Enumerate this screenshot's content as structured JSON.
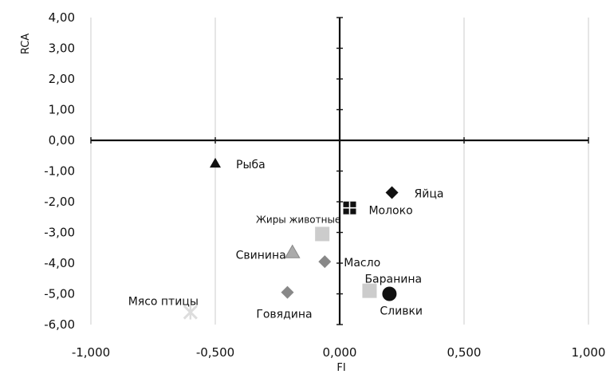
{
  "chart_data": {
    "type": "scatter",
    "title": "",
    "xlabel": "FI",
    "ylabel": "RCA",
    "xlim": [
      -1.0,
      1.0
    ],
    "ylim": [
      -6.0,
      4.0
    ],
    "grid": "vertical",
    "x_ticks": [
      -1.0,
      -0.5,
      0.0,
      0.5,
      1.0
    ],
    "x_tick_labels": [
      "-1,000",
      "-0,500",
      "0,000",
      "0,500",
      "1,000"
    ],
    "y_ticks": [
      4,
      3,
      2,
      1,
      0,
      -1,
      -2,
      -3,
      -4,
      -5,
      -6
    ],
    "y_tick_labels": [
      "4,00",
      "3,00",
      "2,00",
      "1,00",
      "0,00",
      "-1,00",
      "-2,00",
      "-3,00",
      "-4,00",
      "-5,00",
      "-6,00"
    ],
    "points": [
      {
        "label": "Рыба",
        "x": -0.5,
        "y": -0.75,
        "marker": "triangle",
        "color": "#111111"
      },
      {
        "label": "Яйца",
        "x": 0.21,
        "y": -1.7,
        "marker": "diamond",
        "color": "#111111"
      },
      {
        "label": "Молоко",
        "x": 0.04,
        "y": -2.2,
        "marker": "cross-square",
        "color": "#111111"
      },
      {
        "label": "Жиры животные",
        "x": -0.07,
        "y": -3.05,
        "marker": "square",
        "color": "#cccccc"
      },
      {
        "label": "Свинина",
        "x": -0.19,
        "y": -3.65,
        "marker": "triangle-hatched",
        "color": "#aaaaaa"
      },
      {
        "label": "Масло",
        "x": -0.06,
        "y": -3.95,
        "marker": "diamond",
        "color": "#888888"
      },
      {
        "label": "Баранина",
        "x": 0.12,
        "y": -4.9,
        "marker": "square",
        "color": "#cccccc"
      },
      {
        "label": "Сливки",
        "x": 0.2,
        "y": -5.0,
        "marker": "circle",
        "color": "#111111"
      },
      {
        "label": "Говядина",
        "x": -0.21,
        "y": -4.95,
        "marker": "diamond",
        "color": "#888888"
      },
      {
        "label": "Мясо птицы",
        "x": -0.6,
        "y": -5.6,
        "marker": "star-white",
        "color": "#dddddd"
      }
    ]
  }
}
